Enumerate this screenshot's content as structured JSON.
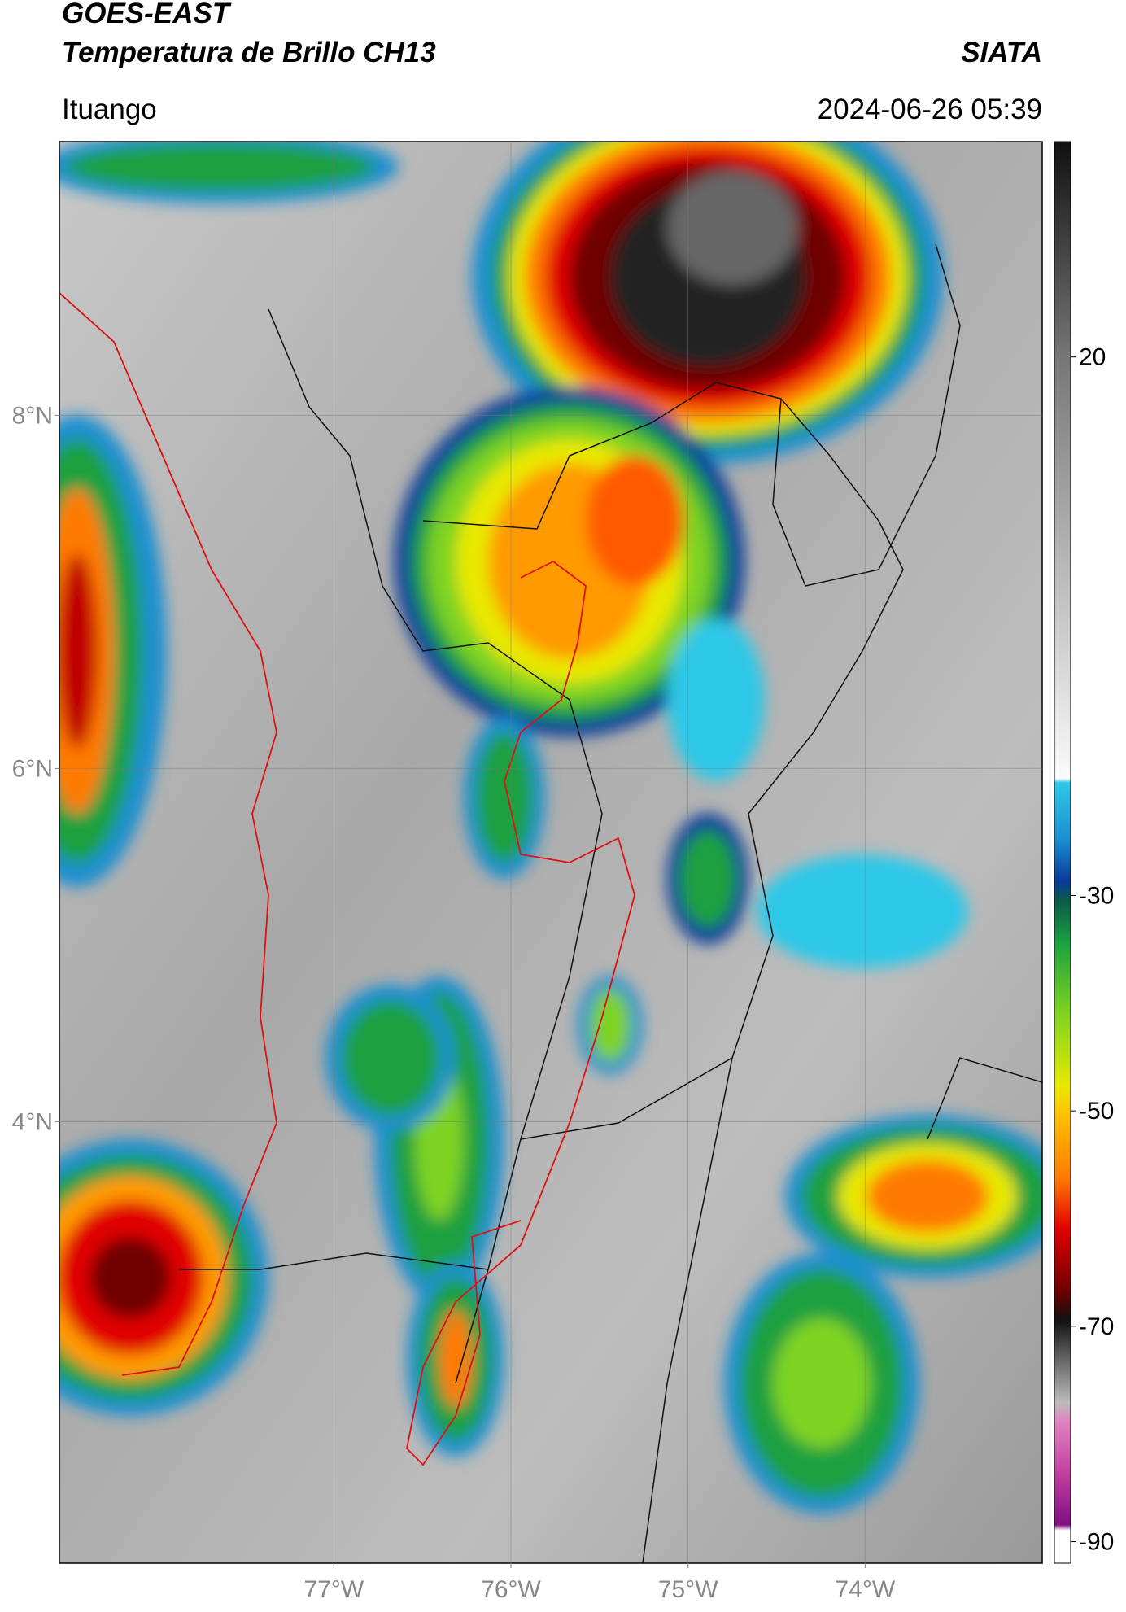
{
  "header": {
    "title": "GOES-EAST",
    "subtitle": "Temperatura de Brillo CH13",
    "source": "SIATA",
    "location": "Ituango",
    "datetime": "2024-06-26 05:39"
  },
  "map": {
    "xlim": [
      -78.55,
      -73
    ],
    "ylim": [
      1.5,
      9.55
    ],
    "xticks": [
      {
        "value": -77,
        "label": "77°W"
      },
      {
        "value": -76,
        "label": "76°W"
      },
      {
        "value": -75,
        "label": "75°W"
      },
      {
        "value": -74,
        "label": "74°W"
      }
    ],
    "yticks": [
      {
        "value": 8,
        "label": "8°N"
      },
      {
        "value": 6,
        "label": "6°N"
      },
      {
        "value": 4,
        "label": "4°N"
      }
    ],
    "grid": true
  },
  "colorbar": {
    "lim": [
      -92,
      40
    ],
    "ticks": [
      20,
      -30,
      -50,
      -70,
      -90
    ]
  }
}
